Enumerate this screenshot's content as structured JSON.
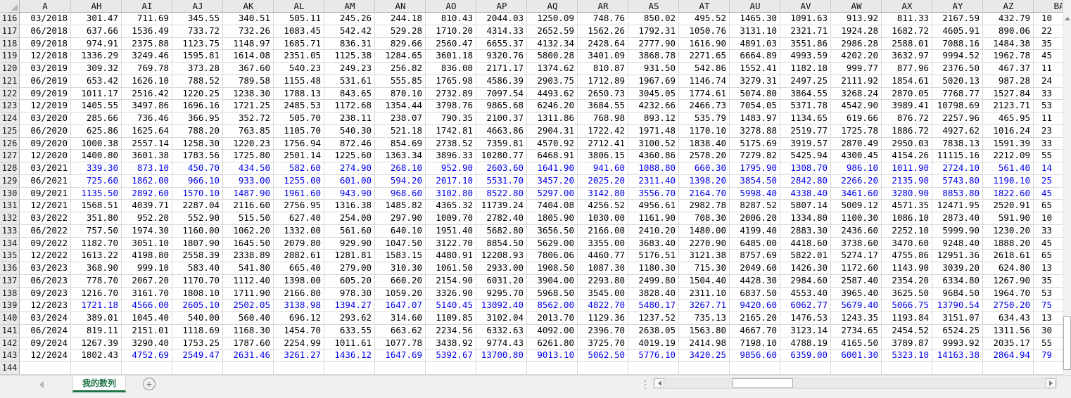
{
  "colors": {
    "blue_text": "#0000ee",
    "tab_accent_green": "#217346",
    "header_bg": "#e9e9e9",
    "grid_line": "#d8d8d8"
  },
  "icons": {
    "select_all": "corner-triangle",
    "scroll_up": "triangle-up",
    "scroll_down": "triangle-down",
    "sheet_nav_left": "triangle-left",
    "sheet_nav_right": "triangle-right",
    "add_sheet": "plus-circle",
    "tab_splitter": "vertical-dots"
  },
  "sheet": {
    "tab_label": "我的数列",
    "add_sheet_glyph": "+",
    "column_headers": [
      "A",
      "AH",
      "AI",
      "AJ",
      "AK",
      "AL",
      "AM",
      "AN",
      "AO",
      "AP",
      "AQ",
      "AR",
      "AS",
      "AT",
      "AU",
      "AV",
      "AW",
      "AX",
      "AY",
      "AZ",
      "BA"
    ],
    "rows": [
      {
        "n": "116",
        "blue_from": -1,
        "cells": [
          "03/2018",
          "301.47",
          "711.69",
          "345.55",
          "340.51",
          "505.11",
          "245.26",
          "244.18",
          "810.43",
          "2044.03",
          "1250.09",
          "748.76",
          "850.02",
          "495.52",
          "1465.30",
          "1091.63",
          "913.92",
          "811.33",
          "2167.59",
          "432.79",
          "10"
        ]
      },
      {
        "n": "117",
        "blue_from": -1,
        "cells": [
          "06/2018",
          "637.66",
          "1536.49",
          "733.72",
          "732.26",
          "1083.45",
          "542.42",
          "529.28",
          "1710.20",
          "4314.33",
          "2652.59",
          "1562.26",
          "1792.31",
          "1050.76",
          "3131.10",
          "2321.71",
          "1924.28",
          "1682.72",
          "4605.91",
          "890.06",
          "22"
        ]
      },
      {
        "n": "118",
        "blue_from": -1,
        "cells": [
          "09/2018",
          "974.91",
          "2375.88",
          "1123.75",
          "1148.97",
          "1685.71",
          "836.31",
          "829.66",
          "2560.47",
          "6655.37",
          "4132.34",
          "2428.64",
          "2777.90",
          "1616.90",
          "4891.03",
          "3551.86",
          "2986.28",
          "2588.01",
          "7088.16",
          "1484.38",
          "35"
        ]
      },
      {
        "n": "119",
        "blue_from": -1,
        "cells": [
          "12/2018",
          "1336.29",
          "3249.46",
          "1595.81",
          "1614.08",
          "2351.05",
          "1125.38",
          "1284.65",
          "3601.18",
          "9320.76",
          "5800.28",
          "3401.09",
          "3868.78",
          "2271.65",
          "6664.89",
          "4993.59",
          "4202.20",
          "3632.97",
          "9994.52",
          "1962.78",
          "45"
        ]
      },
      {
        "n": "120",
        "blue_from": -1,
        "cells": [
          "03/2019",
          "309.32",
          "769.78",
          "373.28",
          "367.60",
          "540.23",
          "249.23",
          "256.82",
          "836.00",
          "2171.17",
          "1374.62",
          "810.87",
          "931.50",
          "542.86",
          "1552.41",
          "1182.18",
          "999.77",
          "877.96",
          "2376.50",
          "467.37",
          "11"
        ]
      },
      {
        "n": "121",
        "blue_from": -1,
        "cells": [
          "06/2019",
          "653.42",
          "1626.10",
          "788.52",
          "789.58",
          "1155.48",
          "531.61",
          "555.85",
          "1765.98",
          "4586.39",
          "2903.75",
          "1712.89",
          "1967.69",
          "1146.74",
          "3279.31",
          "2497.25",
          "2111.92",
          "1854.61",
          "5020.13",
          "987.28",
          "24"
        ]
      },
      {
        "n": "122",
        "blue_from": -1,
        "cells": [
          "09/2019",
          "1011.17",
          "2516.42",
          "1220.25",
          "1238.30",
          "1788.13",
          "843.65",
          "870.10",
          "2732.89",
          "7097.54",
          "4493.62",
          "2650.73",
          "3045.05",
          "1774.61",
          "5074.80",
          "3864.55",
          "3268.24",
          "2870.05",
          "7768.77",
          "1527.84",
          "33"
        ]
      },
      {
        "n": "123",
        "blue_from": -1,
        "cells": [
          "12/2019",
          "1405.55",
          "3497.86",
          "1696.16",
          "1721.25",
          "2485.53",
          "1172.68",
          "1354.44",
          "3798.76",
          "9865.68",
          "6246.20",
          "3684.55",
          "4232.66",
          "2466.73",
          "7054.05",
          "5371.78",
          "4542.90",
          "3989.41",
          "10798.69",
          "2123.71",
          "53"
        ]
      },
      {
        "n": "124",
        "blue_from": -1,
        "cells": [
          "03/2020",
          "285.66",
          "736.46",
          "366.95",
          "352.72",
          "505.70",
          "238.11",
          "238.07",
          "790.35",
          "2100.37",
          "1311.86",
          "768.98",
          "893.12",
          "535.79",
          "1483.97",
          "1134.65",
          "619.66",
          "876.72",
          "2257.96",
          "465.95",
          "11"
        ]
      },
      {
        "n": "125",
        "blue_from": -1,
        "cells": [
          "06/2020",
          "625.86",
          "1625.64",
          "788.20",
          "763.85",
          "1105.70",
          "540.30",
          "521.18",
          "1742.81",
          "4663.86",
          "2904.31",
          "1722.42",
          "1971.48",
          "1170.10",
          "3278.88",
          "2519.77",
          "1725.78",
          "1886.72",
          "4927.62",
          "1016.24",
          "23"
        ]
      },
      {
        "n": "126",
        "blue_from": -1,
        "cells": [
          "09/2020",
          "1000.38",
          "2557.14",
          "1258.30",
          "1220.23",
          "1756.94",
          "872.46",
          "854.69",
          "2738.52",
          "7359.81",
          "4570.92",
          "2712.41",
          "3100.52",
          "1838.40",
          "5175.69",
          "3919.57",
          "2870.49",
          "2950.03",
          "7838.13",
          "1591.39",
          "33"
        ]
      },
      {
        "n": "127",
        "blue_from": -1,
        "cells": [
          "12/2020",
          "1400.80",
          "3601.38",
          "1783.56",
          "1725.80",
          "2501.14",
          "1225.60",
          "1363.34",
          "3896.33",
          "10280.77",
          "6468.91",
          "3806.15",
          "4360.86",
          "2578.20",
          "7279.82",
          "5425.94",
          "4300.45",
          "4154.26",
          "11115.16",
          "2212.09",
          "55"
        ]
      },
      {
        "n": "128",
        "blue_from": 1,
        "cells": [
          "03/2021",
          "339.30",
          "873.10",
          "450.70",
          "434.50",
          "582.60",
          "274.90",
          "268.10",
          "952.90",
          "2603.60",
          "1641.90",
          "941.60",
          "1088.80",
          "660.30",
          "1795.90",
          "1308.70",
          "986.10",
          "1011.90",
          "2724.10",
          "561.40",
          "14"
        ]
      },
      {
        "n": "129",
        "blue_from": 1,
        "cells": [
          "06/2021",
          "725.60",
          "1862.00",
          "966.10",
          "933.00",
          "1255.00",
          "601.00",
          "594.20",
          "2017.10",
          "5531.70",
          "3457.20",
          "2025.20",
          "2311.40",
          "1398.20",
          "3854.50",
          "2842.80",
          "2266.20",
          "2135.90",
          "5743.80",
          "1190.10",
          "25"
        ]
      },
      {
        "n": "130",
        "blue_from": 1,
        "cells": [
          "09/2021",
          "1135.50",
          "2892.60",
          "1570.10",
          "1487.90",
          "1961.60",
          "943.90",
          "968.60",
          "3102.80",
          "8522.80",
          "5297.00",
          "3142.80",
          "3556.70",
          "2164.70",
          "5998.40",
          "4338.40",
          "3461.60",
          "3280.90",
          "8853.80",
          "1822.60",
          "45"
        ]
      },
      {
        "n": "131",
        "blue_from": -1,
        "cells": [
          "12/2021",
          "1568.51",
          "4039.71",
          "2287.04",
          "2116.60",
          "2756.95",
          "1316.38",
          "1485.82",
          "4365.32",
          "11739.24",
          "7404.08",
          "4256.52",
          "4956.61",
          "2982.78",
          "8287.52",
          "5807.14",
          "5009.12",
          "4571.35",
          "12471.95",
          "2520.91",
          "65"
        ]
      },
      {
        "n": "132",
        "blue_from": -1,
        "cells": [
          "03/2022",
          "351.80",
          "952.20",
          "552.90",
          "515.50",
          "627.40",
          "254.00",
          "297.90",
          "1009.70",
          "2782.40",
          "1805.90",
          "1030.00",
          "1161.90",
          "708.30",
          "2006.20",
          "1334.80",
          "1100.30",
          "1086.10",
          "2873.40",
          "591.90",
          "10"
        ]
      },
      {
        "n": "133",
        "blue_from": -1,
        "cells": [
          "06/2022",
          "757.50",
          "1974.30",
          "1160.00",
          "1062.20",
          "1332.00",
          "561.60",
          "640.10",
          "1951.40",
          "5682.80",
          "3656.50",
          "2166.00",
          "2410.20",
          "1480.00",
          "4199.40",
          "2883.30",
          "2436.60",
          "2252.10",
          "5999.90",
          "1230.20",
          "33"
        ]
      },
      {
        "n": "134",
        "blue_from": -1,
        "cells": [
          "09/2022",
          "1182.70",
          "3051.10",
          "1807.90",
          "1645.50",
          "2079.80",
          "929.90",
          "1047.50",
          "3122.70",
          "8854.50",
          "5629.00",
          "3355.00",
          "3683.40",
          "2270.90",
          "6485.00",
          "4418.60",
          "3738.60",
          "3470.60",
          "9248.40",
          "1888.20",
          "45"
        ]
      },
      {
        "n": "135",
        "blue_from": -1,
        "cells": [
          "12/2022",
          "1613.22",
          "4198.80",
          "2558.39",
          "2338.89",
          "2882.61",
          "1281.81",
          "1583.15",
          "4480.91",
          "12208.93",
          "7806.06",
          "4460.77",
          "5176.51",
          "3121.38",
          "8757.69",
          "5822.01",
          "5274.17",
          "4755.86",
          "12951.36",
          "2618.61",
          "65"
        ]
      },
      {
        "n": "136",
        "blue_from": -1,
        "cells": [
          "03/2023",
          "368.90",
          "999.10",
          "583.40",
          "541.80",
          "665.40",
          "279.00",
          "310.30",
          "1061.50",
          "2933.00",
          "1908.50",
          "1087.30",
          "1180.30",
          "715.30",
          "2049.60",
          "1426.30",
          "1172.60",
          "1143.90",
          "3039.20",
          "624.80",
          "13"
        ]
      },
      {
        "n": "137",
        "blue_from": -1,
        "cells": [
          "06/2023",
          "778.70",
          "2067.20",
          "1170.70",
          "1112.40",
          "1398.00",
          "605.20",
          "660.20",
          "2154.90",
          "6031.20",
          "3904.00",
          "2293.80",
          "2499.80",
          "1504.40",
          "4428.30",
          "2984.60",
          "2587.40",
          "2354.20",
          "6334.80",
          "1267.90",
          "35"
        ]
      },
      {
        "n": "138",
        "blue_from": -1,
        "cells": [
          "09/2023",
          "1216.70",
          "3161.70",
          "1808.10",
          "1711.90",
          "2166.80",
          "978.30",
          "1059.20",
          "3326.90",
          "9295.70",
          "5968.50",
          "3545.00",
          "3828.40",
          "2311.10",
          "6837.50",
          "4553.40",
          "3965.40",
          "3625.50",
          "9684.50",
          "1964.70",
          "53"
        ]
      },
      {
        "n": "139",
        "blue_from": 1,
        "cells": [
          "12/2023",
          "1721.18",
          "4566.00",
          "2605.10",
          "2502.05",
          "3138.98",
          "1394.27",
          "1647.07",
          "5140.45",
          "13092.40",
          "8562.00",
          "4822.70",
          "5480.17",
          "3267.71",
          "9420.60",
          "6062.77",
          "5679.40",
          "5066.75",
          "13790.54",
          "2750.20",
          "75"
        ]
      },
      {
        "n": "140",
        "blue_from": -1,
        "cells": [
          "03/2024",
          "389.01",
          "1045.40",
          "540.00",
          "560.40",
          "696.12",
          "293.62",
          "314.60",
          "1109.85",
          "3102.04",
          "2013.70",
          "1129.36",
          "1237.52",
          "735.13",
          "2165.20",
          "1476.53",
          "1243.35",
          "1193.84",
          "3151.07",
          "634.43",
          "13"
        ]
      },
      {
        "n": "141",
        "blue_from": -1,
        "cells": [
          "06/2024",
          "819.11",
          "2151.01",
          "1118.69",
          "1168.30",
          "1454.70",
          "633.55",
          "663.62",
          "2234.56",
          "6332.63",
          "4092.00",
          "2396.70",
          "2638.05",
          "1563.80",
          "4667.70",
          "3123.14",
          "2734.65",
          "2454.52",
          "6524.25",
          "1311.56",
          "30"
        ]
      },
      {
        "n": "142",
        "blue_from": -1,
        "cells": [
          "09/2024",
          "1267.39",
          "3290.40",
          "1753.25",
          "1787.60",
          "2254.99",
          "1011.61",
          "1077.78",
          "3438.92",
          "9774.43",
          "6261.80",
          "3725.70",
          "4019.19",
          "2414.98",
          "7198.10",
          "4788.19",
          "4165.50",
          "3789.87",
          "9993.92",
          "2035.17",
          "55"
        ]
      },
      {
        "n": "143",
        "blue_from": 2,
        "cells": [
          "12/2024",
          "1802.43",
          "4752.69",
          "2549.47",
          "2631.46",
          "3261.27",
          "1436.12",
          "1647.69",
          "5392.67",
          "13700.80",
          "9013.10",
          "5062.50",
          "5776.10",
          "3420.25",
          "9856.60",
          "6359.00",
          "6001.30",
          "5323.10",
          "14163.38",
          "2864.94",
          "79"
        ]
      },
      {
        "n": "144",
        "blue_from": -1,
        "cells": []
      }
    ]
  }
}
